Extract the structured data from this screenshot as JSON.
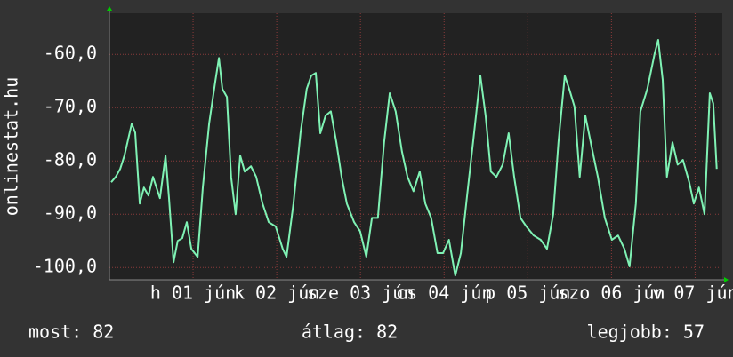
{
  "chart_data": {
    "type": "line",
    "ylabel": "onlinestat.hu",
    "annotations": [
      "most: 82",
      "átlag: 82",
      "legjobb: 57"
    ],
    "xlim": [
      0,
      175.8
    ],
    "xticks": [
      {
        "value": 24,
        "label": "h 01 jún"
      },
      {
        "value": 48,
        "label": "k 02 jún"
      },
      {
        "value": 72,
        "label": "sze 03 jún"
      },
      {
        "value": 96,
        "label": "cs 04 jún"
      },
      {
        "value": 120,
        "label": "p 05 jún"
      },
      {
        "value": 144,
        "label": "szo 06 jún"
      },
      {
        "value": 168,
        "label": "v 07 jún"
      }
    ],
    "ylim": [
      -102.3,
      -52.3
    ],
    "yticks": [
      {
        "value": -100,
        "label": "-100,0"
      },
      {
        "value": -90,
        "label": "-90,0"
      },
      {
        "value": -80,
        "label": "-80,0"
      },
      {
        "value": -70,
        "label": "-70,0"
      },
      {
        "value": -60,
        "label": "-60,0"
      }
    ],
    "grid": true,
    "series": [
      {
        "color": "#7ff2b4",
        "x": [
          0.5,
          1.8,
          3.1,
          4.3,
          6.4,
          7.4,
          8.7,
          9.9,
          11.2,
          12.5,
          14.5,
          16.1,
          17.1,
          18.4,
          19.6,
          20.9,
          22.2,
          23.5,
          25.3,
          26.8,
          28.6,
          30.4,
          31.4,
          32.4,
          33.7,
          34.9,
          36.2,
          37.5,
          38.8,
          40.6,
          42.1,
          43.9,
          45.7,
          47.7,
          49.7,
          50.8,
          52.8,
          54.8,
          56.6,
          57.9,
          59.2,
          60.5,
          62.0,
          63.5,
          65.1,
          66.6,
          68.1,
          70.2,
          71.9,
          73.7,
          75.3,
          77.0,
          78.8,
          80.4,
          82.1,
          83.9,
          85.5,
          87.2,
          89.0,
          90.6,
          92.3,
          94.1,
          95.7,
          97.4,
          99.2,
          100.8,
          102.6,
          104.3,
          106.4,
          107.9,
          109.4,
          111.0,
          112.8,
          114.5,
          116.1,
          117.9,
          119.6,
          121.7,
          123.7,
          125.5,
          127.3,
          128.8,
          130.6,
          131.9,
          133.4,
          134.9,
          136.5,
          138.3,
          140.1,
          142.1,
          144.1,
          145.9,
          147.7,
          149.2,
          151.0,
          152.3,
          154.3,
          156.4,
          157.4,
          158.7,
          159.9,
          161.5,
          163.0,
          164.5,
          166.3,
          167.6,
          169.1,
          170.7,
          172.2,
          173.2,
          174.2
        ],
        "values": [
          -84,
          -83,
          -81.5,
          -79,
          -73,
          -74.7,
          -88,
          -85,
          -86.5,
          -83,
          -87,
          -79,
          -87,
          -99,
          -95,
          -94.5,
          -91.5,
          -96.5,
          -98,
          -85,
          -73,
          -65,
          -60.7,
          -66.5,
          -68,
          -83,
          -90,
          -79,
          -82,
          -81,
          -83,
          -88,
          -91.5,
          -92.3,
          -96.5,
          -98,
          -88,
          -74.8,
          -66.5,
          -64,
          -63.5,
          -74.8,
          -71.5,
          -70.7,
          -76.5,
          -83,
          -88,
          -91.5,
          -93.2,
          -98,
          -90.7,
          -90.7,
          -76.5,
          -67.3,
          -70.7,
          -78.2,
          -83,
          -85.7,
          -82,
          -88,
          -90.7,
          -97.3,
          -97.3,
          -94.8,
          -101.5,
          -97.3,
          -86.5,
          -76.5,
          -64,
          -71.5,
          -82,
          -83,
          -80.7,
          -74.8,
          -83,
          -90.7,
          -92.3,
          -94,
          -94.8,
          -96.5,
          -90,
          -76.5,
          -64,
          -66.5,
          -69.8,
          -83,
          -71.5,
          -77.3,
          -83,
          -90.7,
          -94.8,
          -94,
          -96.5,
          -99.8,
          -88,
          -70.7,
          -66.5,
          -59.8,
          -57.3,
          -64.8,
          -83,
          -76.5,
          -80.7,
          -79.8,
          -84,
          -88,
          -85,
          -90,
          -67.3,
          -69.2,
          -81.5
        ]
      }
    ]
  }
}
